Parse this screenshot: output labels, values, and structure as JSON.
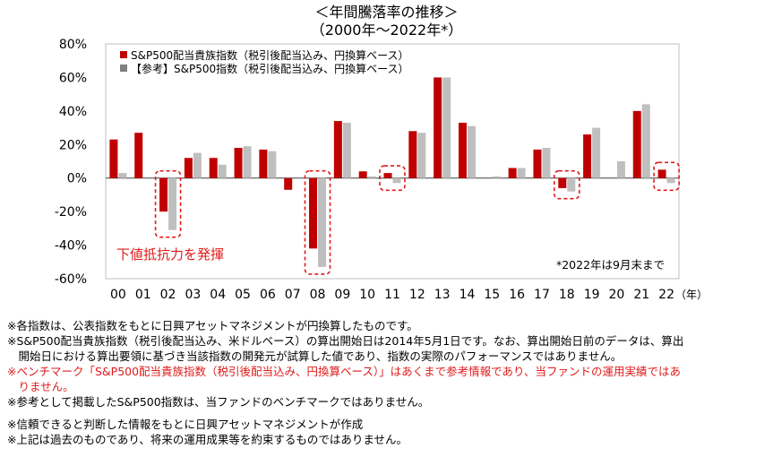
{
  "title_line1": "＜年間騰落率の推移＞",
  "title_line2": "（2000年～2022年*）",
  "chart_data": {
    "type": "bar",
    "categories": [
      "00",
      "01",
      "02",
      "03",
      "04",
      "05",
      "06",
      "07",
      "08",
      "09",
      "10",
      "11",
      "12",
      "13",
      "14",
      "15",
      "16",
      "17",
      "18",
      "19",
      "20",
      "21",
      "22"
    ],
    "x_unit": "（年）",
    "ylim": [
      -60,
      80
    ],
    "yticks": [
      80,
      60,
      40,
      20,
      0,
      -20,
      -40,
      -60
    ],
    "ytick_labels": [
      "80%",
      "60%",
      "40%",
      "20%",
      "0%",
      "-20%",
      "-40%",
      "-60%"
    ],
    "series": [
      {
        "name": "S&P500配当貴族指数（税引後配当込み、円換算ベース）",
        "color": "#c00000",
        "values": [
          23,
          27,
          -20,
          12,
          12,
          18,
          17,
          -7,
          -42,
          34,
          4,
          3,
          28,
          60,
          33,
          0,
          6,
          17,
          -6,
          26,
          0,
          40,
          5
        ]
      },
      {
        "name": "【参考】S&P500指数（税引後配当込み、円換算ベース）",
        "color": "#bfbfbf",
        "values": [
          3,
          0,
          -31,
          15,
          8,
          19,
          16,
          0,
          -53,
          33,
          1,
          -3,
          27,
          60,
          31,
          1,
          6,
          18,
          -8,
          30,
          10,
          44,
          -3
        ]
      }
    ],
    "highlight_categories": [
      "02",
      "08",
      "11",
      "18",
      "22"
    ],
    "annotation": "下値抵抗力を発揮",
    "annotation_color": "#e01b1b",
    "footnote": "*2022年は9月末まで"
  },
  "notes": [
    {
      "text": "※各指数は、公表指数をもとに日興アセットマネジメントが円換算したものです。",
      "color": "black"
    },
    {
      "text": "※S&P500配当貴族指数（税引後配当込み、米ドルベース）の算出開始日は2014年5月1日です。なお、算出開始日前のデータは、算出",
      "color": "black"
    },
    {
      "text": "　開始日における算出要領に基づき当該指数の開発元が試算した値であり、指数の実際のパフォーマンスではありません。",
      "color": "black"
    },
    {
      "text": "※ベンチマーク「S&P500配当貴族指数（税引後配当込み、円換算ベース）」はあくまで参考情報であり、当ファンドの運用実績ではあ",
      "color": "red"
    },
    {
      "text": "　りません。",
      "color": "red"
    },
    {
      "text": "※参考として掲載したS&P500指数は、当ファンドのベンチマークではありません。",
      "color": "black"
    },
    {
      "text": "※信頼できると判断した情報をもとに日興アセットマネジメントが作成",
      "color": "black",
      "gap_before": true
    },
    {
      "text": "※上記は過去のものであり、将来の運用成果等を約束するものではありません。",
      "color": "black"
    }
  ]
}
